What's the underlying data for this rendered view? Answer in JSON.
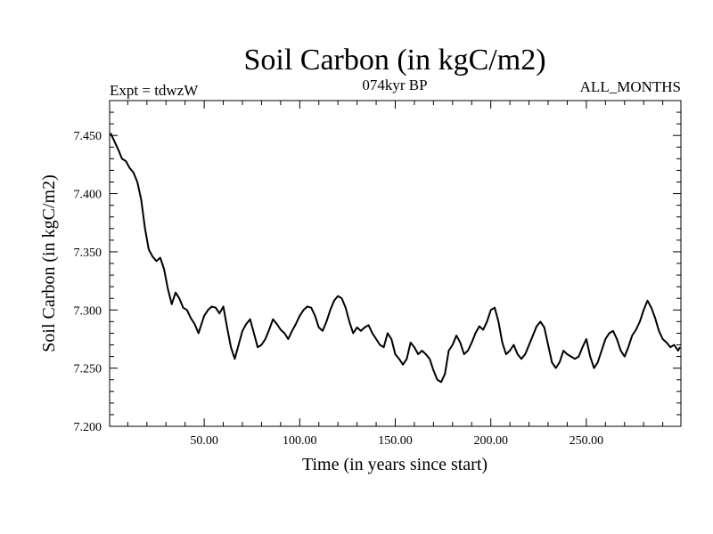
{
  "chart_data": {
    "type": "line",
    "title": "Soil Carbon (in kgC/m2)",
    "subtitle_left": "Expt = tdwzW",
    "subtitle_center": "074kyr BP",
    "subtitle_right": "ALL_MONTHS",
    "xlabel": "Time (in years since start)",
    "ylabel": "Soil Carbon (in kgC/m2)",
    "xlim": [
      0.5,
      299.5
    ],
    "ylim": [
      7.2,
      7.48
    ],
    "x_ticks": [
      50,
      100,
      150,
      200,
      250
    ],
    "x_tick_labels": [
      "50.00",
      "100.00",
      "150.00",
      "200.00",
      "250.00"
    ],
    "y_ticks": [
      7.2,
      7.25,
      7.3,
      7.35,
      7.4,
      7.45
    ],
    "y_tick_labels": [
      "7.200",
      "7.250",
      "7.300",
      "7.350",
      "7.400",
      "7.450"
    ],
    "series": [
      {
        "name": "Soil Carbon",
        "x": [
          1,
          3,
          5,
          7,
          9,
          11,
          13,
          15,
          17,
          19,
          21,
          23,
          25,
          27,
          29,
          31,
          33,
          35,
          37,
          39,
          41,
          43,
          45,
          47,
          50,
          52,
          54,
          56,
          58,
          60,
          62,
          64,
          66,
          68,
          70,
          72,
          74,
          76,
          78,
          80,
          82,
          84,
          86,
          88,
          90,
          92,
          94,
          96,
          98,
          100,
          102,
          104,
          106,
          108,
          110,
          112,
          114,
          116,
          118,
          120,
          122,
          124,
          126,
          128,
          130,
          132,
          134,
          136,
          138,
          140,
          142,
          144,
          146,
          148,
          150,
          152,
          154,
          156,
          158,
          160,
          162,
          164,
          166,
          168,
          170,
          172,
          174,
          176,
          178,
          180,
          182,
          184,
          186,
          188,
          190,
          192,
          194,
          196,
          198,
          200,
          202,
          204,
          206,
          208,
          210,
          212,
          214,
          216,
          218,
          220,
          222,
          224,
          226,
          228,
          230,
          232,
          234,
          236,
          238,
          240,
          242,
          244,
          246,
          248,
          250,
          252,
          254,
          256,
          258,
          260,
          262,
          264,
          266,
          268,
          270,
          272,
          274,
          276,
          278,
          280,
          282,
          284,
          286,
          288,
          290,
          292,
          294,
          296,
          298,
          299
        ],
        "values": [
          7.452,
          7.445,
          7.438,
          7.43,
          7.428,
          7.422,
          7.418,
          7.41,
          7.395,
          7.37,
          7.352,
          7.346,
          7.342,
          7.345,
          7.335,
          7.318,
          7.305,
          7.315,
          7.31,
          7.302,
          7.3,
          7.293,
          7.288,
          7.28,
          7.295,
          7.3,
          7.303,
          7.302,
          7.297,
          7.303,
          7.285,
          7.268,
          7.258,
          7.27,
          7.282,
          7.288,
          7.292,
          7.28,
          7.268,
          7.27,
          7.275,
          7.283,
          7.292,
          7.288,
          7.283,
          7.28,
          7.275,
          7.282,
          7.288,
          7.295,
          7.3,
          7.303,
          7.302,
          7.295,
          7.285,
          7.282,
          7.29,
          7.3,
          7.308,
          7.312,
          7.31,
          7.302,
          7.29,
          7.28,
          7.285,
          7.282,
          7.285,
          7.287,
          7.28,
          7.275,
          7.27,
          7.268,
          7.28,
          7.275,
          7.262,
          7.258,
          7.253,
          7.258,
          7.272,
          7.268,
          7.262,
          7.265,
          7.262,
          7.258,
          7.248,
          7.24,
          7.238,
          7.245,
          7.265,
          7.27,
          7.278,
          7.272,
          7.262,
          7.265,
          7.272,
          7.28,
          7.286,
          7.283,
          7.29,
          7.3,
          7.302,
          7.29,
          7.272,
          7.262,
          7.265,
          7.27,
          7.262,
          7.258,
          7.262,
          7.27,
          7.278,
          7.286,
          7.29,
          7.285,
          7.27,
          7.255,
          7.25,
          7.255,
          7.265,
          7.262,
          7.26,
          7.258,
          7.26,
          7.268,
          7.275,
          7.26,
          7.25,
          7.255,
          7.265,
          7.275,
          7.28,
          7.282,
          7.275,
          7.265,
          7.26,
          7.268,
          7.278,
          7.283,
          7.29,
          7.3,
          7.308,
          7.302,
          7.293,
          7.282,
          7.275,
          7.272,
          7.268,
          7.27,
          7.265,
          7.268
        ]
      }
    ]
  }
}
